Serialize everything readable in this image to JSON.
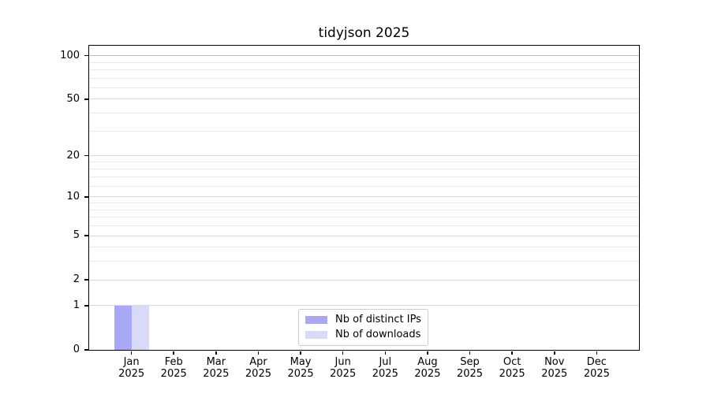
{
  "chart_data": {
    "type": "bar",
    "title": "tidyjson 2025",
    "x": {
      "categories": [
        "Jan",
        "Feb",
        "Mar",
        "Apr",
        "May",
        "Jun",
        "Jul",
        "Aug",
        "Sep",
        "Oct",
        "Nov",
        "Dec"
      ],
      "year_label": "2025"
    },
    "series": [
      {
        "name": "Nb of distinct IPs",
        "color": "#a8a8f4",
        "values": [
          1,
          0,
          0,
          0,
          0,
          0,
          0,
          0,
          0,
          0,
          0,
          0
        ]
      },
      {
        "name": "Nb of downloads",
        "color": "#d9d9f8",
        "values": [
          1,
          0,
          0,
          0,
          0,
          0,
          0,
          0,
          0,
          0,
          0,
          0
        ]
      }
    ],
    "y_axis": {
      "scale": "log1p",
      "tick_labels": [
        0,
        1,
        2,
        5,
        10,
        20,
        50,
        100
      ],
      "minor_gridlines": [
        3,
        4,
        6,
        7,
        8,
        9,
        12,
        14,
        16,
        18,
        30,
        40,
        60,
        70,
        80,
        90
      ],
      "ymax": 117
    },
    "grid": "horizontal",
    "legend": {
      "position": "bottom-center"
    },
    "colors": {
      "major_gridline": "#d8d8d8",
      "top_gridline": "#c0c0c0",
      "minor_gridline": "#ebebeb",
      "axis": "#000000"
    }
  }
}
